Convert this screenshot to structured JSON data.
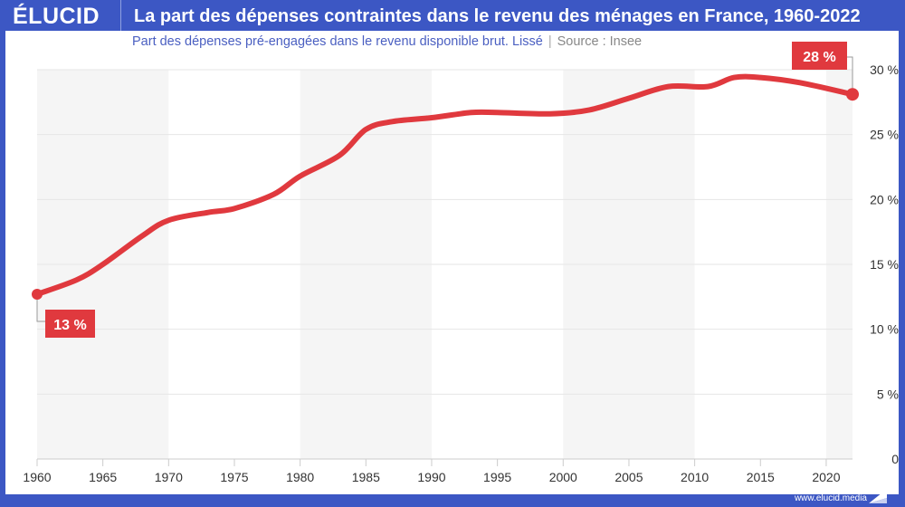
{
  "header": {
    "logo": "ÉLUCID",
    "title": "La part des dépenses contraintes dans le revenu des ménages en France, 1960-2022"
  },
  "subtitle": {
    "text": "Part des dépenses pré-engagées dans le revenu disponible brut. Lissé",
    "separator": "|",
    "source": "Source : Insee"
  },
  "footer": {
    "url": "www.elucid.media"
  },
  "colors": {
    "brand": "#3c57c4",
    "line": "#e0393e",
    "band": "#f5f5f5"
  },
  "chart_data": {
    "type": "line",
    "title": "La part des dépenses contraintes dans le revenu des ménages en France, 1960-2022",
    "subtitle": "Part des dépenses pré-engagées dans le revenu disponible brut. Lissé",
    "xlim": [
      1960,
      2022
    ],
    "ylim": [
      0,
      30
    ],
    "x_ticks": [
      "1960",
      "1965",
      "1970",
      "1975",
      "1980",
      "1985",
      "1990",
      "1995",
      "2000",
      "2005",
      "2010",
      "2015",
      "2020"
    ],
    "y_ticks": [
      "0",
      "5 %",
      "10 %",
      "15 %",
      "20 %",
      "25 %",
      "30 %"
    ],
    "y_axis_side": "right",
    "grid": true,
    "x": [
      1960,
      1963,
      1965,
      1968,
      1970,
      1973,
      1975,
      1978,
      1980,
      1983,
      1985,
      1987,
      1990,
      1993,
      1995,
      1999,
      2002,
      2005,
      2008,
      2011,
      2013,
      2015,
      2018,
      2022
    ],
    "values": [
      12.7,
      13.8,
      15.0,
      17.2,
      18.4,
      19.0,
      19.3,
      20.4,
      21.8,
      23.4,
      25.4,
      26.0,
      26.3,
      26.7,
      26.7,
      26.6,
      26.9,
      27.8,
      28.7,
      28.7,
      29.4,
      29.4,
      29.0,
      28.1
    ],
    "annotations": [
      {
        "x": 1960,
        "text": "13 %"
      },
      {
        "x": 2022,
        "text": "28 %"
      }
    ]
  }
}
